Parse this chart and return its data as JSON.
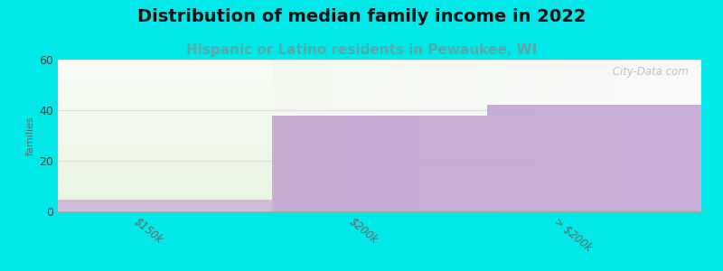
{
  "title": "Distribution of median family income in 2022",
  "subtitle": "Hispanic or Latino residents in Pewaukee, WI",
  "categories": [
    "$150k",
    "$200k",
    "> $200k"
  ],
  "values": [
    4.5,
    38,
    42
  ],
  "ylim": [
    0,
    60
  ],
  "yticks": [
    0,
    20,
    40,
    60
  ],
  "background_color": "#00e8e8",
  "plot_bg_top": "#f8f8f8",
  "plot_bg_bottom": "#ffffff",
  "title_fontsize": 14,
  "subtitle_fontsize": 11,
  "ylabel": "families",
  "watermark": " City-Data.com",
  "grid_color": "#dddddd",
  "purple_color": "#c0a0d0",
  "green_light": "#e8f5e0",
  "green_top": "#f8fcf5",
  "purple_bar1": "#c8aad8"
}
